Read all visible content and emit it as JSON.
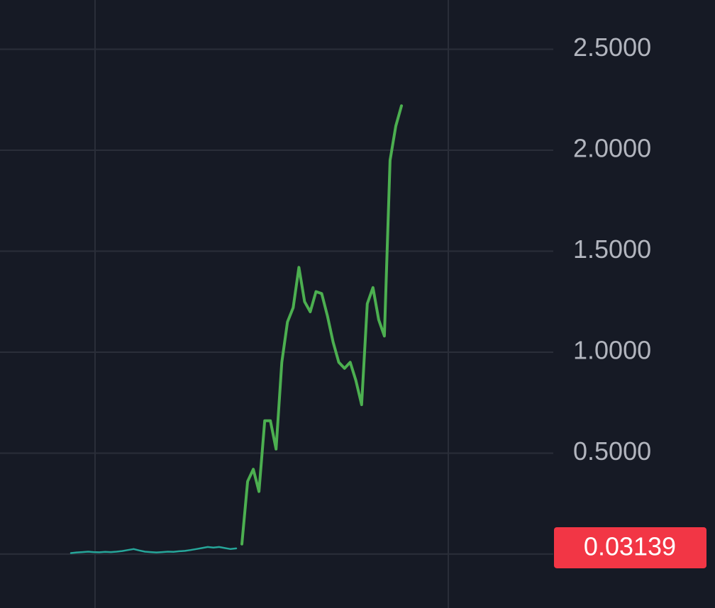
{
  "chart_data": {
    "type": "line",
    "ylim": [
      -0.267,
      2.744
    ],
    "yticks": [
      {
        "value": 0.5,
        "label": "0.5000"
      },
      {
        "value": 1,
        "label": "1.0000"
      },
      {
        "value": 1.5,
        "label": "1.5000"
      },
      {
        "value": 2,
        "label": "2.0000"
      },
      {
        "value": 2.5,
        "label": "2.5000"
      }
    ],
    "grid": true,
    "last_price": 0.03139,
    "last_price_color": "#f23645",
    "series": [
      {
        "color": "#26a69a",
        "values": [
          0.005,
          0.008,
          0.01,
          0.012,
          0.01,
          0.009,
          0.011,
          0.01,
          0.012,
          0.015,
          0.02,
          0.025,
          0.018,
          0.012,
          0.01,
          0.008,
          0.01,
          0.012,
          0.011,
          0.014,
          0.016,
          0.02,
          0.025,
          0.03,
          0.035,
          0.032,
          0.035,
          0.03,
          0.025,
          0.028,
          null,
          null,
          null,
          null,
          null,
          null,
          null,
          null,
          null,
          null,
          null,
          null,
          null,
          null,
          null,
          null,
          null,
          null,
          null,
          null,
          null,
          null,
          null,
          null,
          null,
          null,
          null,
          null,
          null
        ]
      },
      {
        "color": "#4caf50",
        "values": [
          null,
          null,
          null,
          null,
          null,
          null,
          null,
          null,
          null,
          null,
          null,
          null,
          null,
          null,
          null,
          null,
          null,
          null,
          null,
          null,
          null,
          null,
          null,
          null,
          null,
          null,
          null,
          null,
          null,
          null,
          0.05,
          0.36,
          0.42,
          0.31,
          0.66,
          0.66,
          0.52,
          0.95,
          1.15,
          1.22,
          1.42,
          1.25,
          1.2,
          1.3,
          1.29,
          1.18,
          1.05,
          0.95,
          0.92,
          0.95,
          0.86,
          0.74,
          1.24,
          1.32,
          1.16,
          1.08,
          1.95,
          2.12,
          2.22
        ]
      }
    ]
  }
}
